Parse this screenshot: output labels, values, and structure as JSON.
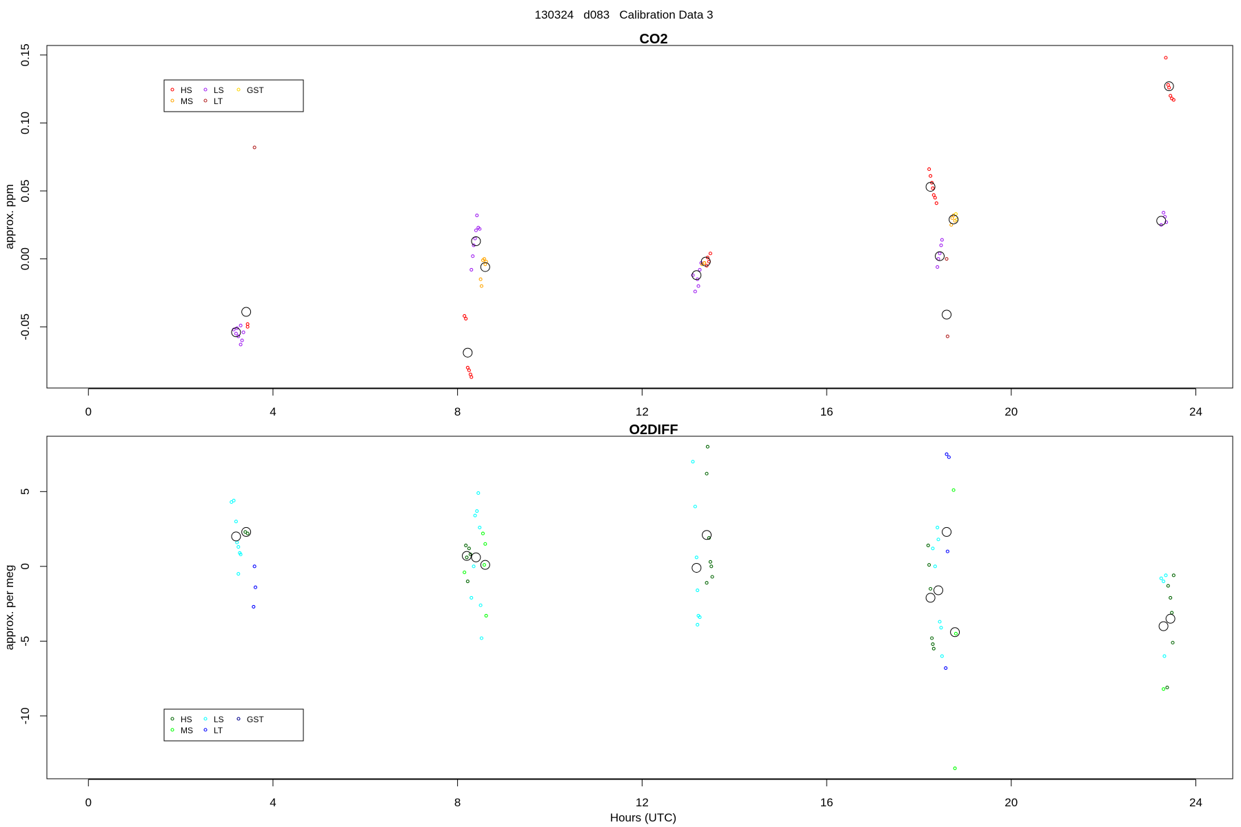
{
  "figure_title": "130324   d083   Calibration Data 3",
  "chart_data": [
    {
      "type": "scatter",
      "title": "CO2",
      "xlabel": "",
      "ylabel": "approx. ppm",
      "xlim": [
        -0.9,
        24.8
      ],
      "ylim": [
        -0.095,
        0.157
      ],
      "xticks": [
        0,
        4,
        8,
        12,
        16,
        20,
        24
      ],
      "xtick_labels": [
        "0",
        "4",
        "8",
        "12",
        "16",
        "20",
        "24"
      ],
      "yticks": [
        -0.05,
        0.0,
        0.05,
        0.1,
        0.15
      ],
      "ytick_labels": [
        "-0.05",
        "0.00",
        "0.05",
        "0.10",
        "0.15"
      ],
      "legend": {
        "placement": "top-left",
        "entries": [
          {
            "label": "HS",
            "color": "#ff0000"
          },
          {
            "label": "MS",
            "color": "#ffa500"
          },
          {
            "label": "LS",
            "color": "#a020f0"
          },
          {
            "label": "LT",
            "color": "#b22222"
          },
          {
            "label": "GST",
            "color": "#ffd700"
          }
        ]
      },
      "series": [
        {
          "color": "#ff0000",
          "points": [
            [
              3.45,
              -0.048
            ],
            [
              3.45,
              -0.05
            ],
            [
              8.15,
              -0.042
            ],
            [
              8.18,
              -0.044
            ],
            [
              8.22,
              -0.08
            ],
            [
              8.25,
              -0.082
            ],
            [
              8.28,
              -0.085
            ],
            [
              8.3,
              -0.087
            ],
            [
              13.35,
              -0.003
            ],
            [
              13.4,
              -0.005
            ],
            [
              13.42,
              0.001
            ],
            [
              13.45,
              -0.002
            ],
            [
              13.48,
              0.004
            ],
            [
              18.22,
              0.066
            ],
            [
              18.25,
              0.061
            ],
            [
              18.28,
              0.056
            ],
            [
              18.3,
              0.052
            ],
            [
              18.32,
              0.047
            ],
            [
              18.35,
              0.045
            ],
            [
              18.38,
              0.041
            ],
            [
              23.35,
              0.148
            ],
            [
              23.4,
              0.128
            ],
            [
              23.42,
              0.126
            ],
            [
              23.45,
              0.12
            ],
            [
              23.48,
              0.118
            ],
            [
              23.52,
              0.117
            ]
          ]
        },
        {
          "color": "#a020f0",
          "points": [
            [
              3.15,
              -0.052
            ],
            [
              3.2,
              -0.055
            ],
            [
              3.22,
              -0.051
            ],
            [
              3.25,
              -0.057
            ],
            [
              3.3,
              -0.049
            ],
            [
              3.3,
              -0.063
            ],
            [
              3.33,
              -0.06
            ],
            [
              3.36,
              -0.054
            ],
            [
              8.3,
              -0.008
            ],
            [
              8.33,
              0.002
            ],
            [
              8.35,
              0.01
            ],
            [
              8.38,
              0.015
            ],
            [
              8.4,
              0.021
            ],
            [
              8.42,
              0.032
            ],
            [
              8.45,
              0.023
            ],
            [
              8.48,
              0.022
            ],
            [
              13.1,
              -0.012
            ],
            [
              13.15,
              -0.024
            ],
            [
              13.2,
              -0.015
            ],
            [
              13.22,
              -0.02
            ],
            [
              13.25,
              -0.008
            ],
            [
              13.28,
              -0.003
            ],
            [
              18.4,
              -0.006
            ],
            [
              18.42,
              0.0
            ],
            [
              18.45,
              0.004
            ],
            [
              18.48,
              0.01
            ],
            [
              18.5,
              0.014
            ],
            [
              23.25,
              0.025
            ],
            [
              23.3,
              0.034
            ],
            [
              23.33,
              0.031
            ],
            [
              23.36,
              0.027
            ]
          ]
        },
        {
          "color": "#ffa500",
          "points": [
            [
              8.5,
              -0.015
            ],
            [
              8.52,
              -0.02
            ],
            [
              8.55,
              -0.001
            ],
            [
              8.58,
              0.0
            ],
            [
              8.6,
              -0.004
            ],
            [
              8.62,
              -0.002
            ],
            [
              13.3,
              -0.004
            ],
            [
              13.35,
              -0.003
            ],
            [
              18.7,
              0.025
            ],
            [
              18.72,
              0.03
            ],
            [
              18.75,
              0.032
            ],
            [
              18.78,
              0.028
            ]
          ]
        },
        {
          "color": "#ffd700",
          "points": [
            [
              18.8,
              0.033
            ],
            [
              18.82,
              0.029
            ]
          ]
        },
        {
          "color": "#b22222",
          "points": [
            [
              3.6,
              0.082
            ],
            [
              18.6,
              0.0
            ],
            [
              18.62,
              -0.057
            ]
          ]
        },
        {
          "color": "#000000",
          "mean": true,
          "points": [
            [
              3.2,
              -0.054
            ],
            [
              3.42,
              -0.039
            ],
            [
              8.22,
              -0.069
            ],
            [
              8.4,
              0.013
            ],
            [
              8.6,
              -0.006
            ],
            [
              13.18,
              -0.012
            ],
            [
              13.38,
              -0.002
            ],
            [
              18.25,
              0.053
            ],
            [
              18.45,
              0.002
            ],
            [
              18.6,
              -0.041
            ],
            [
              18.75,
              0.029
            ],
            [
              23.25,
              0.028
            ],
            [
              23.42,
              0.127
            ]
          ]
        }
      ]
    },
    {
      "type": "scatter",
      "title": "O2DIFF",
      "xlabel": "Hours (UTC)",
      "ylabel": "approx. per meg",
      "xlim": [
        -0.9,
        24.8
      ],
      "ylim": [
        -14.2,
        8.7
      ],
      "xticks": [
        0,
        4,
        8,
        12,
        16,
        20,
        24
      ],
      "xtick_labels": [
        "0",
        "4",
        "8",
        "12",
        "16",
        "20",
        "24"
      ],
      "yticks": [
        -10,
        -5,
        0,
        5
      ],
      "ytick_labels": [
        "-10",
        "-5",
        "0",
        "5"
      ],
      "legend": {
        "placement": "bottom-left",
        "entries": [
          {
            "label": "HS",
            "color": "#006400"
          },
          {
            "label": "MS",
            "color": "#00ff00"
          },
          {
            "label": "LS",
            "color": "#00ffff"
          },
          {
            "label": "LT",
            "color": "#0000ff"
          },
          {
            "label": "GST",
            "color": "#00008b"
          }
        ]
      },
      "series": [
        {
          "color": "#006400",
          "points": [
            [
              3.4,
              2.3
            ],
            [
              3.45,
              2.2
            ],
            [
              8.18,
              1.4
            ],
            [
              8.2,
              0.6
            ],
            [
              8.22,
              -1.0
            ],
            [
              8.25,
              1.2
            ],
            [
              8.28,
              0.8
            ],
            [
              13.42,
              8.0
            ],
            [
              13.4,
              6.2
            ],
            [
              13.45,
              1.9
            ],
            [
              13.48,
              0.3
            ],
            [
              13.5,
              0.0
            ],
            [
              13.52,
              -0.7
            ],
            [
              13.4,
              -1.1
            ],
            [
              18.2,
              1.4
            ],
            [
              18.22,
              0.1
            ],
            [
              18.25,
              -1.5
            ],
            [
              18.28,
              -4.8
            ],
            [
              18.3,
              -5.2
            ],
            [
              18.32,
              -5.5
            ],
            [
              23.4,
              -1.3
            ],
            [
              23.45,
              -2.1
            ],
            [
              23.48,
              -3.1
            ],
            [
              23.5,
              -5.1
            ],
            [
              23.52,
              -0.6
            ],
            [
              23.38,
              -8.1
            ]
          ]
        },
        {
          "color": "#00ff00",
          "points": [
            [
              8.15,
              -0.4
            ],
            [
              8.55,
              2.2
            ],
            [
              8.6,
              1.5
            ],
            [
              8.62,
              -3.3
            ],
            [
              8.58,
              0.1
            ],
            [
              18.75,
              5.1
            ],
            [
              18.8,
              -4.5
            ],
            [
              18.78,
              -13.5
            ],
            [
              23.3,
              -8.2
            ]
          ]
        },
        {
          "color": "#00ffff",
          "points": [
            [
              3.1,
              4.3
            ],
            [
              3.15,
              4.4
            ],
            [
              3.2,
              3.0
            ],
            [
              3.22,
              1.6
            ],
            [
              3.25,
              1.3
            ],
            [
              3.28,
              0.9
            ],
            [
              3.3,
              0.8
            ],
            [
              3.25,
              -0.5
            ],
            [
              8.35,
              0.0
            ],
            [
              8.38,
              3.4
            ],
            [
              8.42,
              3.7
            ],
            [
              8.45,
              4.9
            ],
            [
              8.48,
              2.6
            ],
            [
              8.3,
              -2.1
            ],
            [
              8.5,
              -2.6
            ],
            [
              8.52,
              -4.8
            ],
            [
              13.1,
              7.0
            ],
            [
              13.15,
              4.0
            ],
            [
              13.18,
              0.6
            ],
            [
              13.2,
              -1.6
            ],
            [
              13.22,
              -3.3
            ],
            [
              13.25,
              -3.4
            ],
            [
              13.2,
              -3.9
            ],
            [
              18.3,
              1.2
            ],
            [
              18.35,
              0.0
            ],
            [
              18.4,
              2.6
            ],
            [
              18.42,
              1.8
            ],
            [
              18.45,
              -3.7
            ],
            [
              18.48,
              -4.1
            ],
            [
              18.5,
              -6.0
            ],
            [
              23.25,
              -0.8
            ],
            [
              23.3,
              -1.0
            ],
            [
              23.32,
              -6.0
            ],
            [
              23.35,
              -0.6
            ]
          ]
        },
        {
          "color": "#0000ff",
          "points": [
            [
              3.6,
              0.0
            ],
            [
              3.62,
              -1.4
            ],
            [
              3.58,
              -2.7
            ],
            [
              18.6,
              7.5
            ],
            [
              18.65,
              7.3
            ],
            [
              18.62,
              1.0
            ],
            [
              18.58,
              -6.8
            ]
          ]
        },
        {
          "color": "#000000",
          "mean": true,
          "points": [
            [
              3.2,
              2.0
            ],
            [
              3.42,
              2.3
            ],
            [
              8.2,
              0.7
            ],
            [
              8.4,
              0.6
            ],
            [
              8.6,
              0.1
            ],
            [
              13.18,
              -0.1
            ],
            [
              13.4,
              2.1
            ],
            [
              18.25,
              -2.1
            ],
            [
              18.42,
              -1.6
            ],
            [
              18.6,
              2.3
            ],
            [
              18.78,
              -4.4
            ],
            [
              23.3,
              -4.0
            ],
            [
              23.45,
              -3.5
            ]
          ]
        }
      ]
    }
  ]
}
